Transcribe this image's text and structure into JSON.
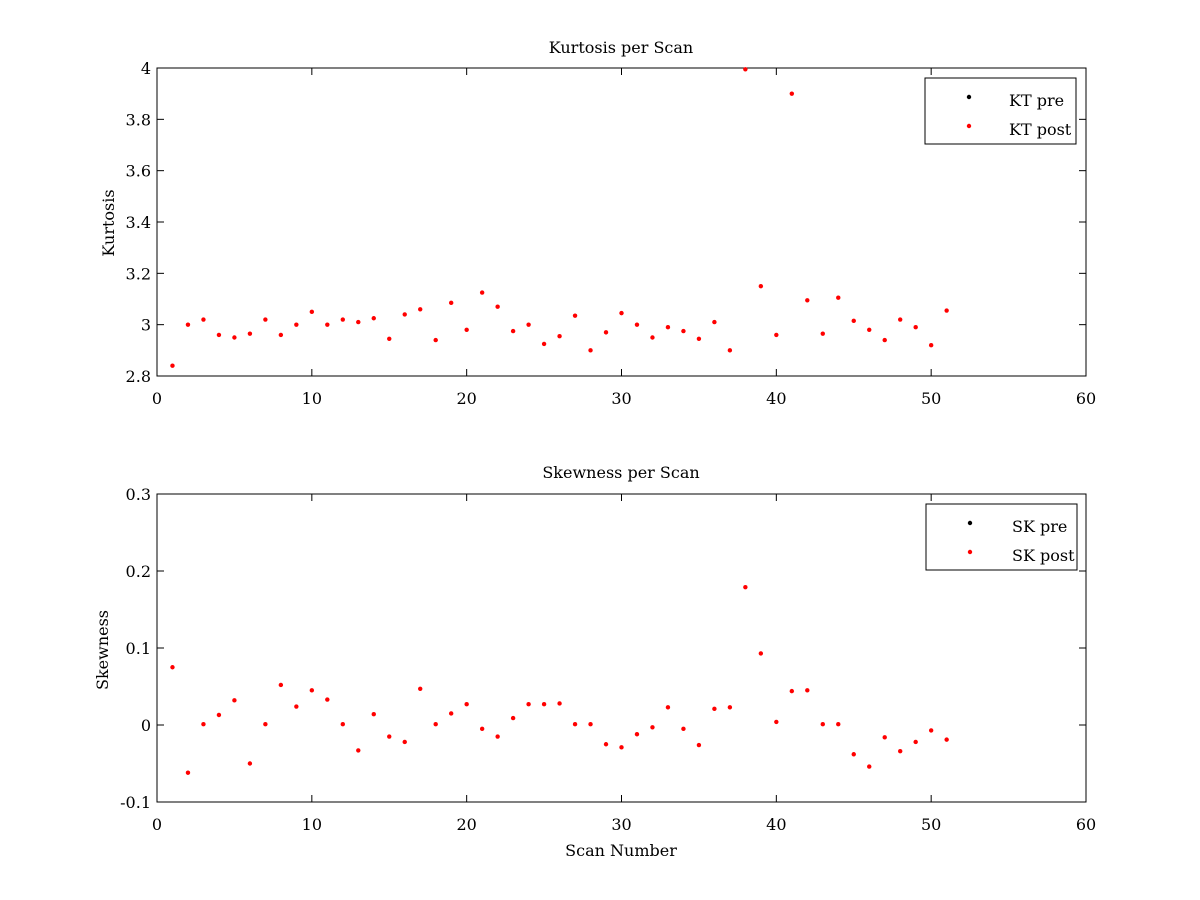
{
  "chart_data": [
    {
      "type": "scatter",
      "title": "Kurtosis per Scan",
      "xlabel": "",
      "ylabel": "Kurtosis",
      "xlim": [
        0,
        60
      ],
      "ylim": [
        2.8,
        4
      ],
      "xticks": [
        0,
        10,
        20,
        30,
        40,
        50,
        60
      ],
      "xtick_labels": [
        "0",
        "10",
        "20",
        "30",
        "40",
        "50",
        "60"
      ],
      "yticks": [
        2.8,
        3,
        3.2,
        3.4,
        3.6,
        3.8,
        4
      ],
      "ytick_labels": [
        "2.8",
        "3",
        "3.2",
        "3.4",
        "3.6",
        "3.8",
        "4"
      ],
      "grid": false,
      "legend_position": "top-right",
      "series": [
        {
          "name": "KT pre",
          "color": "#000000",
          "x": [],
          "y": []
        },
        {
          "name": "KT post",
          "color": "#ff0000",
          "x": [
            1,
            2,
            3,
            4,
            5,
            6,
            7,
            8,
            9,
            10,
            11,
            12,
            13,
            14,
            15,
            16,
            17,
            18,
            19,
            20,
            21,
            22,
            23,
            24,
            25,
            26,
            27,
            28,
            29,
            30,
            31,
            32,
            33,
            34,
            35,
            36,
            37,
            38,
            39,
            40,
            41,
            42,
            43,
            44,
            45,
            46,
            47,
            48,
            49,
            50,
            51
          ],
          "y": [
            2.84,
            3.0,
            3.02,
            2.96,
            2.95,
            2.965,
            3.02,
            2.96,
            3.0,
            3.05,
            3.0,
            3.02,
            3.01,
            3.025,
            2.945,
            3.04,
            3.06,
            2.94,
            3.085,
            2.98,
            3.125,
            3.07,
            2.975,
            3.0,
            2.925,
            2.955,
            3.035,
            2.9,
            2.97,
            3.045,
            3.0,
            2.95,
            2.99,
            2.975,
            2.945,
            3.01,
            2.9,
            3.995,
            3.15,
            2.96,
            3.9,
            3.095,
            2.965,
            3.105,
            3.015,
            2.98,
            2.94,
            3.02,
            2.99,
            2.92,
            3.055
          ]
        }
      ]
    },
    {
      "type": "scatter",
      "title": "Skewness per Scan",
      "xlabel": "Scan Number",
      "ylabel": "Skewness",
      "xlim": [
        0,
        60
      ],
      "ylim": [
        -0.1,
        0.3
      ],
      "xticks": [
        0,
        10,
        20,
        30,
        40,
        50,
        60
      ],
      "xtick_labels": [
        "0",
        "10",
        "20",
        "30",
        "40",
        "50",
        "60"
      ],
      "yticks": [
        -0.1,
        0,
        0.1,
        0.2,
        0.3
      ],
      "ytick_labels": [
        "-0.1",
        "0",
        "0.1",
        "0.2",
        "0.3"
      ],
      "grid": false,
      "legend_position": "top-right",
      "series": [
        {
          "name": "SK pre",
          "color": "#000000",
          "x": [],
          "y": []
        },
        {
          "name": "SK post",
          "color": "#ff0000",
          "x": [
            1,
            2,
            3,
            4,
            5,
            6,
            7,
            8,
            9,
            10,
            11,
            12,
            13,
            14,
            15,
            16,
            17,
            18,
            19,
            20,
            21,
            22,
            23,
            24,
            25,
            26,
            27,
            28,
            29,
            30,
            31,
            32,
            33,
            34,
            35,
            36,
            37,
            38,
            39,
            40,
            41,
            42,
            43,
            44,
            45,
            46,
            47,
            48,
            49,
            50,
            51
          ],
          "y": [
            0.075,
            -0.062,
            0.001,
            0.013,
            0.032,
            -0.05,
            0.001,
            0.052,
            0.024,
            0.045,
            0.033,
            0.001,
            -0.033,
            0.014,
            -0.015,
            -0.022,
            0.047,
            0.001,
            0.015,
            0.027,
            -0.005,
            -0.015,
            0.009,
            0.027,
            0.027,
            0.028,
            0.001,
            0.001,
            -0.025,
            -0.029,
            -0.012,
            -0.003,
            0.023,
            -0.005,
            -0.026,
            0.021,
            0.023,
            0.179,
            0.093,
            0.004,
            0.044,
            0.045,
            0.001,
            0.001,
            -0.038,
            -0.054,
            -0.016,
            -0.034,
            -0.022,
            -0.007,
            -0.019
          ]
        }
      ]
    }
  ]
}
